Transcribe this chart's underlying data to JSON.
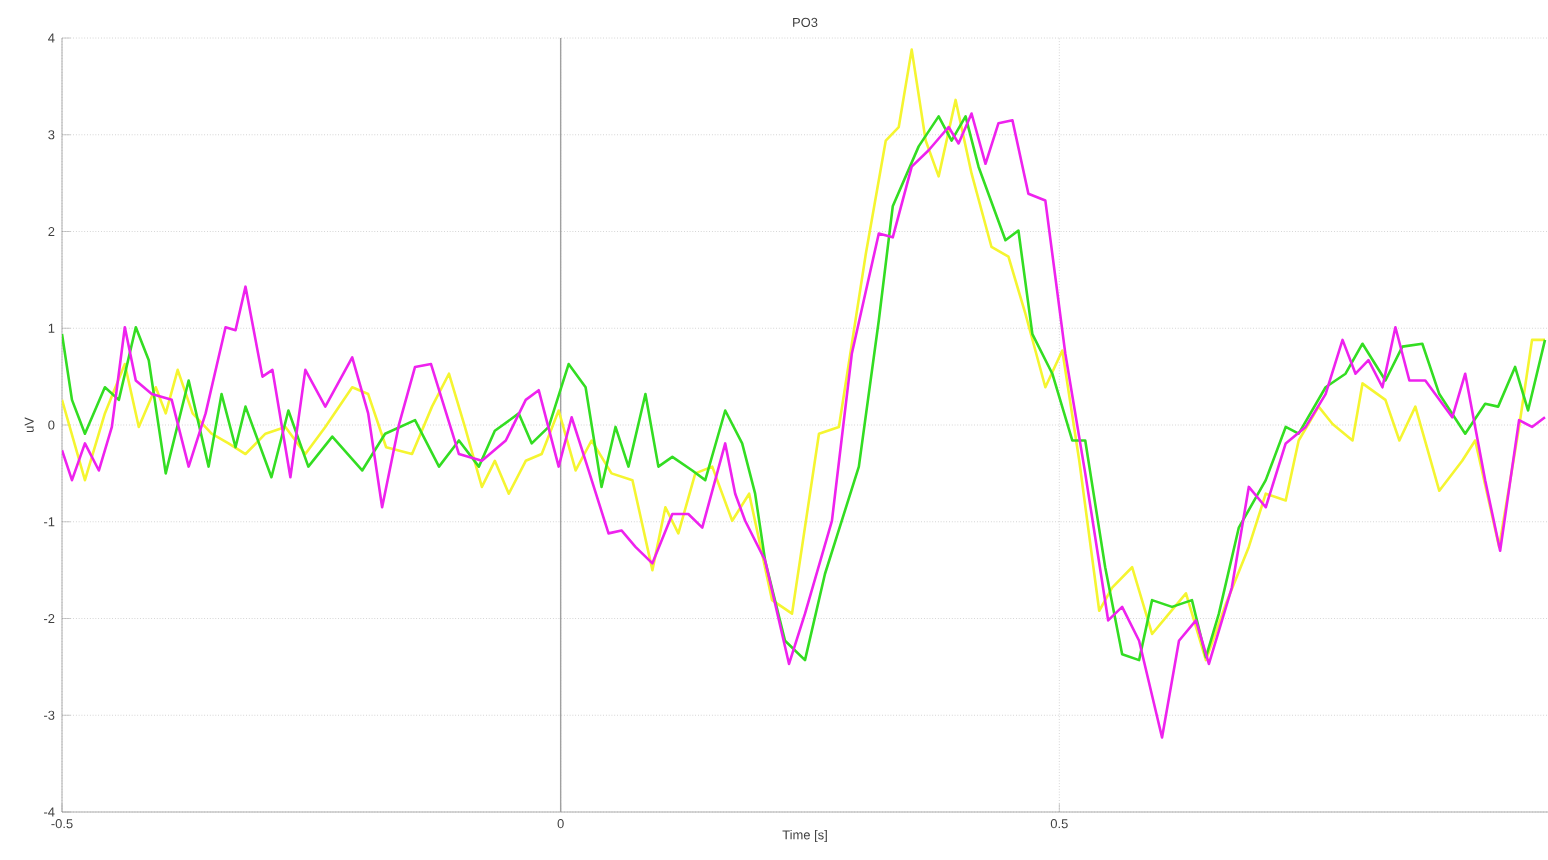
{
  "chart_data": {
    "type": "line",
    "title": "PO3",
    "xlabel": "Time [s]",
    "ylabel": "uV",
    "xlim": [
      -0.5,
      0.99
    ],
    "ylim": [
      -4,
      4
    ],
    "xticks": [
      -0.5,
      0,
      0.5
    ],
    "yticks": [
      -4,
      -3,
      -2,
      -1,
      0,
      1,
      2,
      3,
      4
    ],
    "grid": true,
    "line_style": "solid",
    "ref_lines": [
      {
        "axis": "x",
        "value": 0,
        "color": "#a0a0a0"
      }
    ],
    "series": [
      {
        "color": "#f5f530",
        "x": [
          -0.5,
          -0.477,
          -0.457,
          -0.437,
          -0.423,
          -0.406,
          -0.396,
          -0.384,
          -0.369,
          -0.35,
          -0.333,
          -0.316,
          -0.296,
          -0.276,
          -0.256,
          -0.236,
          -0.209,
          -0.193,
          -0.175,
          -0.149,
          -0.129,
          -0.112,
          -0.096,
          -0.079,
          -0.066,
          -0.052,
          -0.035,
          -0.019,
          -0.002,
          0.015,
          0.031,
          0.051,
          0.072,
          0.092,
          0.105,
          0.118,
          0.135,
          0.152,
          0.172,
          0.189,
          0.212,
          0.232,
          0.259,
          0.279,
          0.306,
          0.326,
          0.339,
          0.352,
          0.366,
          0.379,
          0.396,
          0.412,
          0.432,
          0.449,
          0.466,
          0.486,
          0.503,
          0.52,
          0.54,
          0.553,
          0.573,
          0.593,
          0.61,
          0.627,
          0.647,
          0.667,
          0.69,
          0.707,
          0.727,
          0.74,
          0.76,
          0.774,
          0.794,
          0.804,
          0.827,
          0.841,
          0.857,
          0.881,
          0.904,
          0.917,
          0.941,
          0.961,
          0.974,
          0.987
        ],
        "values": [
          0.26,
          -0.57,
          0.12,
          0.63,
          -0.02,
          0.39,
          0.12,
          0.57,
          0.12,
          -0.09,
          -0.19,
          -0.3,
          -0.09,
          -0.02,
          -0.3,
          -0.02,
          0.39,
          0.32,
          -0.23,
          -0.3,
          0.19,
          0.53,
          -0.02,
          -0.64,
          -0.37,
          -0.71,
          -0.37,
          -0.3,
          0.15,
          -0.47,
          -0.16,
          -0.5,
          -0.57,
          -1.5,
          -0.85,
          -1.12,
          -0.5,
          -0.43,
          -0.99,
          -0.71,
          -1.81,
          -1.95,
          -0.09,
          -0.02,
          1.77,
          2.94,
          3.08,
          3.88,
          2.94,
          2.57,
          3.36,
          2.6,
          1.84,
          1.74,
          1.15,
          0.39,
          0.77,
          -0.37,
          -1.92,
          -1.68,
          -1.47,
          -2.16,
          -1.95,
          -1.74,
          -2.43,
          -1.85,
          -1.26,
          -0.71,
          -0.78,
          -0.16,
          0.19,
          0.01,
          -0.16,
          0.43,
          0.26,
          -0.16,
          0.19,
          -0.68,
          -0.37,
          -0.16,
          -1.26,
          -0.02,
          0.88,
          0.88
        ]
      },
      {
        "color": "#33dd22",
        "x": [
          -0.5,
          -0.49,
          -0.477,
          -0.457,
          -0.443,
          -0.426,
          -0.413,
          -0.396,
          -0.373,
          -0.353,
          -0.34,
          -0.326,
          -0.316,
          -0.29,
          -0.273,
          -0.253,
          -0.229,
          -0.199,
          -0.176,
          -0.146,
          -0.122,
          -0.102,
          -0.082,
          -0.066,
          -0.042,
          -0.029,
          -0.012,
          0.008,
          0.025,
          0.041,
          0.055,
          0.068,
          0.085,
          0.098,
          0.112,
          0.132,
          0.145,
          0.165,
          0.182,
          0.195,
          0.205,
          0.225,
          0.245,
          0.265,
          0.299,
          0.319,
          0.333,
          0.359,
          0.379,
          0.392,
          0.406,
          0.419,
          0.446,
          0.459,
          0.473,
          0.493,
          0.513,
          0.526,
          0.546,
          0.563,
          0.58,
          0.593,
          0.613,
          0.633,
          0.647,
          0.66,
          0.68,
          0.707,
          0.727,
          0.74,
          0.767,
          0.787,
          0.804,
          0.827,
          0.844,
          0.864,
          0.881,
          0.907,
          0.927,
          0.94,
          0.957,
          0.97,
          0.987
        ],
        "values": [
          0.94,
          0.26,
          -0.09,
          0.39,
          0.26,
          1.01,
          0.67,
          -0.5,
          0.46,
          -0.43,
          0.32,
          -0.23,
          0.19,
          -0.54,
          0.15,
          -0.43,
          -0.12,
          -0.47,
          -0.09,
          0.05,
          -0.43,
          -0.16,
          -0.43,
          -0.06,
          0.12,
          -0.19,
          -0.02,
          0.63,
          0.39,
          -0.64,
          -0.02,
          -0.43,
          0.32,
          -0.43,
          -0.33,
          -0.47,
          -0.57,
          0.15,
          -0.19,
          -0.71,
          -1.4,
          -2.23,
          -2.43,
          -1.54,
          -0.43,
          1.08,
          2.26,
          2.88,
          3.19,
          2.94,
          3.19,
          2.67,
          1.91,
          2.01,
          0.94,
          0.53,
          -0.16,
          -0.16,
          -1.47,
          -2.37,
          -2.43,
          -1.81,
          -1.88,
          -1.81,
          -2.4,
          -1.95,
          -1.06,
          -0.57,
          -0.02,
          -0.09,
          0.39,
          0.53,
          0.84,
          0.46,
          0.81,
          0.84,
          0.32,
          -0.09,
          0.22,
          0.19,
          0.6,
          0.15,
          0.88
        ]
      },
      {
        "color": "#ee22ee",
        "x": [
          -0.5,
          -0.49,
          -0.477,
          -0.463,
          -0.45,
          -0.437,
          -0.426,
          -0.41,
          -0.39,
          -0.373,
          -0.356,
          -0.336,
          -0.326,
          -0.316,
          -0.299,
          -0.289,
          -0.271,
          -0.256,
          -0.236,
          -0.209,
          -0.193,
          -0.179,
          -0.162,
          -0.146,
          -0.13,
          -0.102,
          -0.079,
          -0.055,
          -0.035,
          -0.022,
          -0.002,
          0.011,
          0.025,
          0.048,
          0.061,
          0.075,
          0.092,
          0.112,
          0.128,
          0.142,
          0.165,
          0.175,
          0.185,
          0.205,
          0.229,
          0.245,
          0.272,
          0.292,
          0.319,
          0.333,
          0.352,
          0.369,
          0.389,
          0.399,
          0.412,
          0.426,
          0.439,
          0.453,
          0.469,
          0.486,
          0.506,
          0.526,
          0.549,
          0.563,
          0.58,
          0.603,
          0.62,
          0.637,
          0.65,
          0.673,
          0.69,
          0.707,
          0.727,
          0.747,
          0.767,
          0.784,
          0.797,
          0.81,
          0.824,
          0.837,
          0.851,
          0.867,
          0.894,
          0.907,
          0.927,
          0.942,
          0.961,
          0.974,
          0.987
        ],
        "values": [
          -0.26,
          -0.57,
          -0.19,
          -0.47,
          -0.02,
          1.01,
          0.46,
          0.32,
          0.26,
          -0.43,
          0.12,
          1.01,
          0.98,
          1.43,
          0.5,
          0.57,
          -0.54,
          0.57,
          0.19,
          0.7,
          0.12,
          -0.85,
          0.01,
          0.6,
          0.63,
          -0.3,
          -0.37,
          -0.16,
          0.26,
          0.36,
          -0.43,
          0.08,
          -0.37,
          -1.12,
          -1.09,
          -1.26,
          -1.43,
          -0.92,
          -0.92,
          -1.06,
          -0.19,
          -0.71,
          -0.99,
          -1.4,
          -2.47,
          -1.95,
          -0.99,
          0.74,
          1.98,
          1.94,
          2.67,
          2.84,
          3.08,
          2.91,
          3.22,
          2.7,
          3.12,
          3.15,
          2.39,
          2.32,
          0.74,
          -0.5,
          -2.02,
          -1.88,
          -2.23,
          -3.23,
          -2.23,
          -2.02,
          -2.47,
          -1.68,
          -0.64,
          -0.85,
          -0.19,
          -0.02,
          0.32,
          0.88,
          0.53,
          0.67,
          0.39,
          1.01,
          0.46,
          0.46,
          0.08,
          0.53,
          -0.57,
          -1.3,
          0.05,
          -0.02,
          0.08
        ]
      }
    ]
  }
}
